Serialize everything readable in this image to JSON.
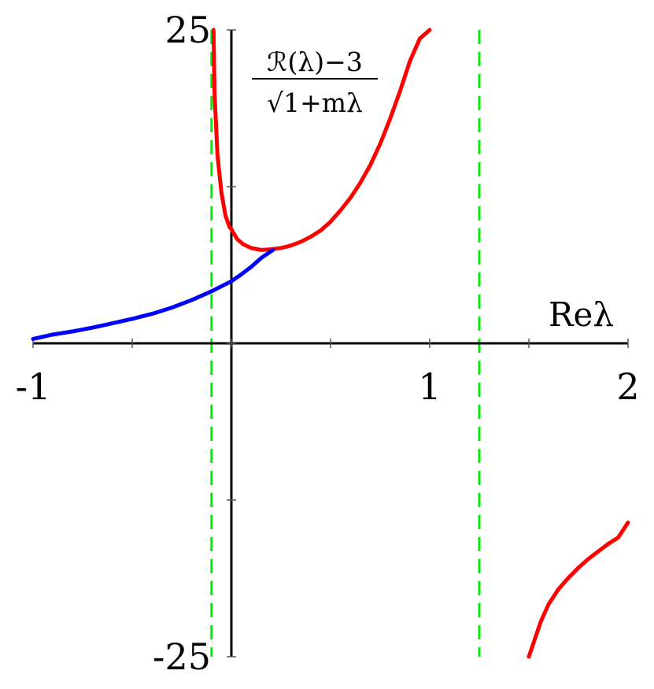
{
  "chart_data": {
    "type": "line",
    "title": "",
    "xlabel": "Reλ",
    "ylabel": "ℛ(λ)−3 / √1+mλ",
    "ylabel_parts": {
      "numerator": "ℛ(λ)−3",
      "denominator": "√1+mλ"
    },
    "xlim": [
      -1,
      2
    ],
    "ylim": [
      -25,
      25
    ],
    "x_tick_values": [
      -1,
      -0.5,
      0,
      0.5,
      1,
      1.5,
      2
    ],
    "x_tick_labels": [
      {
        "x": -1,
        "label": "-1"
      },
      {
        "x": 1,
        "label": "1"
      },
      {
        "x": 2,
        "label": "2"
      }
    ],
    "y_tick_values": [
      -25,
      -12.5,
      0,
      12.5,
      25
    ],
    "y_tick_labels": [
      {
        "y": 25,
        "label": "25"
      },
      {
        "y": -25,
        "label": "-25"
      }
    ],
    "grid": false,
    "series": [
      {
        "color": "#ff0000",
        "segments": [
          {
            "x": [
              -0.09,
              -0.085,
              -0.07,
              -0.05,
              -0.03,
              -0.01,
              0.0,
              0.03,
              0.06,
              0.1,
              0.15,
              0.2,
              0.25,
              0.3,
              0.35,
              0.4,
              0.45,
              0.5,
              0.55,
              0.6,
              0.65,
              0.7,
              0.75,
              0.8,
              0.85,
              0.9,
              0.95,
              1.0
            ],
            "y": [
              25,
              20,
              15,
              12,
              10.2,
              9.3,
              9.1,
              8.3,
              7.9,
              7.6,
              7.45,
              7.5,
              7.6,
              7.8,
              8.1,
              8.5,
              9.0,
              9.7,
              10.6,
              11.6,
              12.8,
              14.2,
              15.9,
              17.9,
              20.1,
              22.5,
              24.3,
              25
            ]
          },
          {
            "x": [
              1.5,
              1.53,
              1.56,
              1.6,
              1.65,
              1.7,
              1.75,
              1.8,
              1.85,
              1.9,
              1.95,
              2.0
            ],
            "y": [
              -25,
              -23.6,
              -22.2,
              -20.8,
              -19.6,
              -18.7,
              -17.9,
              -17.2,
              -16.6,
              -16.0,
              -15.5,
              -14.3
            ]
          }
        ]
      },
      {
        "color": "#0000ff",
        "segments": [
          {
            "x": [
              -1.0,
              -0.9,
              -0.8,
              -0.7,
              -0.6,
              -0.5,
              -0.4,
              -0.3,
              -0.2,
              -0.1,
              0.0,
              0.05,
              0.1,
              0.15,
              0.21
            ],
            "y": [
              0.35,
              0.7,
              0.95,
              1.25,
              1.6,
              1.95,
              2.35,
              2.85,
              3.45,
              4.15,
              4.95,
              5.5,
              6.1,
              6.8,
              7.45
            ]
          }
        ]
      }
    ],
    "vertical_lines": [
      {
        "x": -0.1,
        "color": "#00ee00",
        "style": "dashed"
      },
      {
        "x": 1.25,
        "color": "#00ee00",
        "style": "dashed"
      }
    ]
  }
}
